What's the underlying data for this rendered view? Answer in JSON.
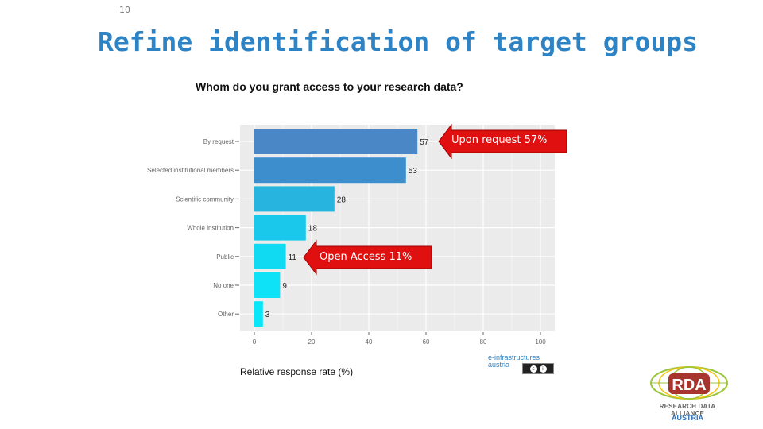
{
  "slide": {
    "number": "10",
    "title": "Refine identification of target groups"
  },
  "chart_data": {
    "type": "bar",
    "orientation": "horizontal",
    "title": "Whom do you grant access to your research data?",
    "xlabel": "Relative response rate (%)",
    "ylabel": "",
    "categories": [
      "By request",
      "Selected institutional members",
      "Scientific community",
      "Whole institution",
      "Public",
      "No one",
      "Other"
    ],
    "values": [
      57,
      53,
      28,
      18,
      11,
      9,
      3
    ],
    "bar_colors": [
      "#4a87c6",
      "#3c8fcc",
      "#27b5e0",
      "#19c8ea",
      "#10daf2",
      "#0de2f6",
      "#08e6f9"
    ],
    "xlim": [
      0,
      100
    ],
    "x_ticks": [
      "0",
      "20",
      "40",
      "60",
      "80",
      "100"
    ],
    "grid": true,
    "data_labels": true
  },
  "callouts": [
    {
      "text": "Upon request 57%",
      "color": "#e01010"
    },
    {
      "text": "Open Access 11%",
      "color": "#e01010"
    }
  ],
  "credit": {
    "line1": "e-infrastructures",
    "line2": "austria"
  },
  "rda_logo": {
    "letters": "RDA",
    "tagline": "RESEARCH DATA ALLIANCE",
    "country": "AUSTRIA"
  }
}
